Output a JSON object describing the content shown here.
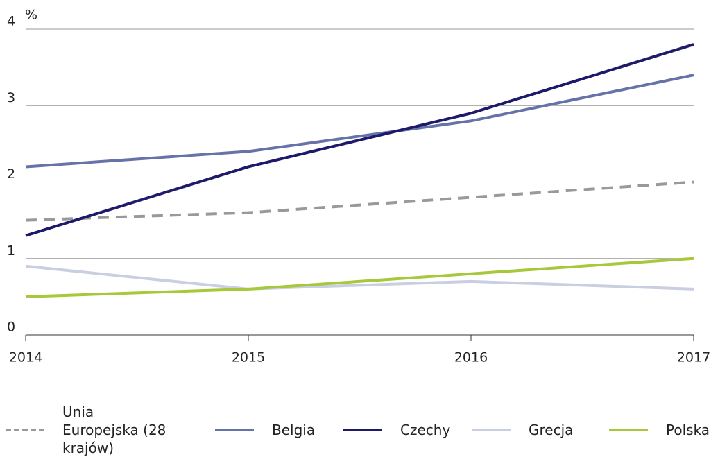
{
  "chart_data": {
    "type": "line",
    "y_label": "%",
    "x": [
      2014,
      2015,
      2016,
      2017
    ],
    "xlim": [
      2014,
      2017
    ],
    "xticks": [
      2014,
      2015,
      2016,
      2017
    ],
    "ylim": [
      0,
      4
    ],
    "yticks": [
      0,
      1,
      2,
      3,
      4
    ],
    "grid": true,
    "legend": "bottom",
    "series": [
      {
        "name": "Unia Europejska (28 krajów)",
        "color": "#999999",
        "style": "dashed",
        "values": [
          1.5,
          1.6,
          1.8,
          2.0
        ]
      },
      {
        "name": "Belgia",
        "color": "#6673a8",
        "values": [
          2.2,
          2.4,
          2.8,
          3.4
        ]
      },
      {
        "name": "Czechy",
        "color": "#1e1a6b",
        "values": [
          1.3,
          2.2,
          2.9,
          3.8
        ]
      },
      {
        "name": "Grecja",
        "color": "#c9cee0",
        "values": [
          0.9,
          0.6,
          0.7,
          0.6
        ]
      },
      {
        "name": "Polska",
        "color": "#a6c83a",
        "values": [
          0.5,
          0.6,
          0.8,
          1.0
        ]
      }
    ]
  }
}
